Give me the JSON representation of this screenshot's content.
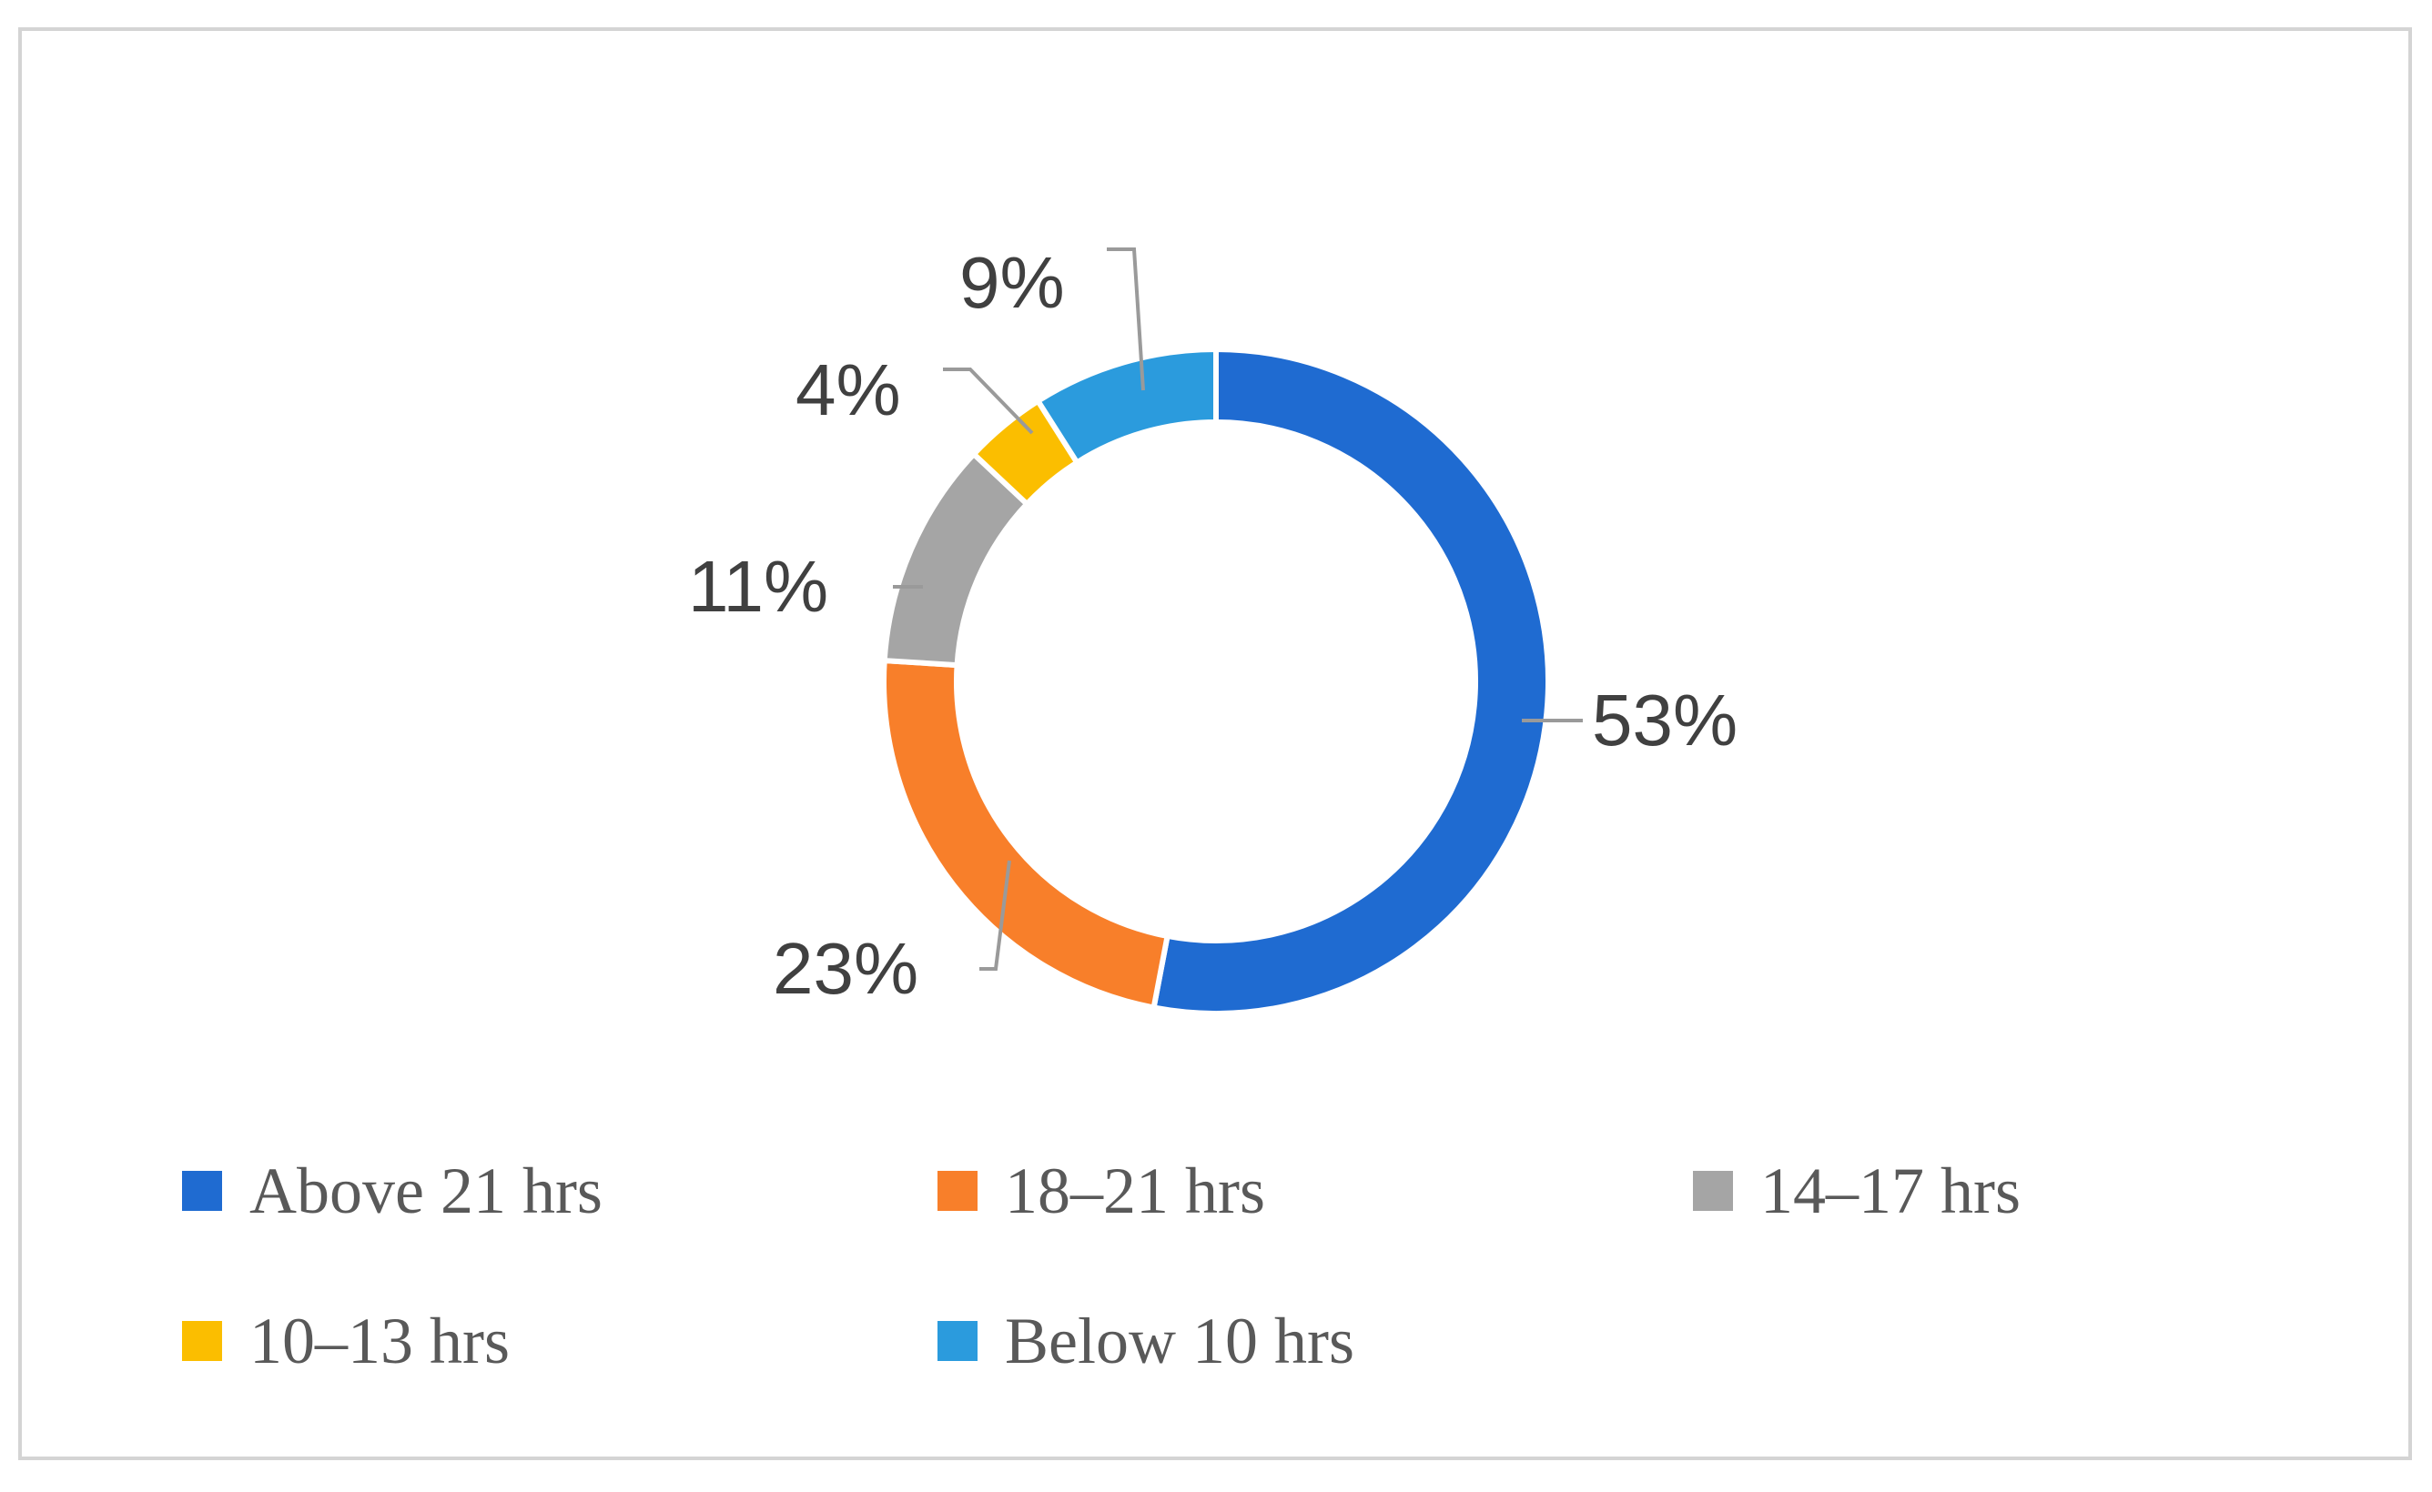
{
  "chart_data": {
    "type": "pie",
    "donut": true,
    "categories": [
      "Above 21 hrs",
      "18–21 hrs",
      "14–17 hrs",
      "10–13 hrs",
      "Below 10 hrs"
    ],
    "values": [
      53,
      23,
      11,
      4,
      9
    ],
    "value_labels": [
      "53%",
      "23%",
      "11%",
      "4%",
      "9%"
    ],
    "colors": [
      "#1f6bd1",
      "#f87f2a",
      "#a5a5a5",
      "#fbbe00",
      "#2b9bdd"
    ],
    "legend_position": "bottom",
    "title": ""
  }
}
